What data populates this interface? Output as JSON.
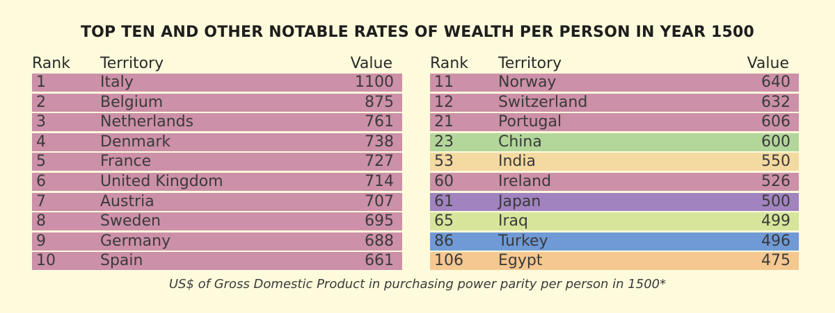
{
  "title": "TOP TEN AND OTHER NOTABLE RATES OF WEALTH PER PERSON IN YEAR 1500",
  "headers": {
    "rank": "Rank",
    "territory": "Territory",
    "value": "Value"
  },
  "footnote": "US$ of Gross Domestic Product in purchasing power parity per person in 1500*",
  "colors": {
    "background": "#fdfbdc",
    "pink": "#cc90a8",
    "green": "#b3d69a",
    "peach": "#f4d9a0",
    "purple": "#a183c0",
    "lime": "#d7e59b",
    "blue": "#6f9ad6",
    "orange": "#f5c891"
  },
  "chart_data": {
    "type": "table",
    "title": "TOP TEN AND OTHER NOTABLE RATES OF WEALTH PER PERSON IN YEAR 1500",
    "columns": [
      "Rank",
      "Territory",
      "Value"
    ],
    "left_table": [
      {
        "rank": "1",
        "territory": "Italy",
        "value": "1100",
        "color": "#cc90a8"
      },
      {
        "rank": "2",
        "territory": "Belgium",
        "value": "875",
        "color": "#cc90a8"
      },
      {
        "rank": "3",
        "territory": "Netherlands",
        "value": "761",
        "color": "#cc90a8"
      },
      {
        "rank": "4",
        "territory": "Denmark",
        "value": "738",
        "color": "#cc90a8"
      },
      {
        "rank": "5",
        "territory": "France",
        "value": "727",
        "color": "#cc90a8"
      },
      {
        "rank": "6",
        "territory": "United Kingdom",
        "value": "714",
        "color": "#cc90a8"
      },
      {
        "rank": "7",
        "territory": "Austria",
        "value": "707",
        "color": "#cc90a8"
      },
      {
        "rank": "8",
        "territory": "Sweden",
        "value": "695",
        "color": "#cc90a8"
      },
      {
        "rank": "9",
        "territory": "Germany",
        "value": "688",
        "color": "#cc90a8"
      },
      {
        "rank": "10",
        "territory": "Spain",
        "value": "661",
        "color": "#cc90a8"
      }
    ],
    "right_table": [
      {
        "rank": "11",
        "territory": "Norway",
        "value": "640",
        "color": "#cc90a8"
      },
      {
        "rank": "12",
        "territory": "Switzerland",
        "value": "632",
        "color": "#cc90a8"
      },
      {
        "rank": "21",
        "territory": "Portugal",
        "value": "606",
        "color": "#cc90a8"
      },
      {
        "rank": "23",
        "territory": "China",
        "value": "600",
        "color": "#b3d69a"
      },
      {
        "rank": "53",
        "territory": "India",
        "value": "550",
        "color": "#f4d9a0"
      },
      {
        "rank": "60",
        "territory": "Ireland",
        "value": "526",
        "color": "#cc90a8"
      },
      {
        "rank": "61",
        "territory": "Japan",
        "value": "500",
        "color": "#a183c0"
      },
      {
        "rank": "65",
        "territory": "Iraq",
        "value": "499",
        "color": "#d7e59b"
      },
      {
        "rank": "86",
        "territory": "Turkey",
        "value": "496",
        "color": "#6f9ad6"
      },
      {
        "rank": "106",
        "territory": "Egypt",
        "value": "475",
        "color": "#f5c891"
      }
    ]
  }
}
